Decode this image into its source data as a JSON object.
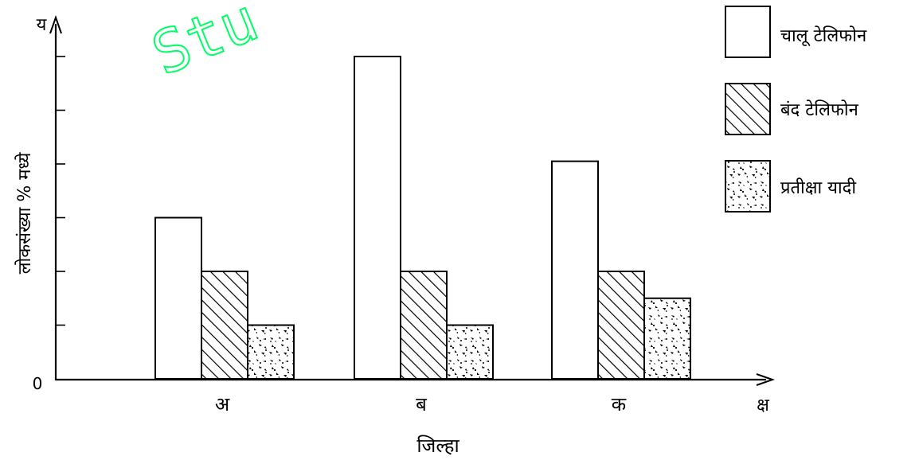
{
  "chart_data": {
    "type": "bar",
    "title": "",
    "categories": [
      "अ",
      "ब",
      "क"
    ],
    "xlabel": "जिल्हा",
    "ylabel": "लोकसंख्या % मध्ये",
    "x_axis_letter": "क्ष",
    "y_axis_letter": "य",
    "y_origin_label": "0",
    "ylim": [
      0,
      12
    ],
    "y_tick_count": 6,
    "legend_position": "top-right",
    "series": [
      {
        "name": "चालू टेलिफोन",
        "pattern": "none",
        "values": [
          6,
          12,
          8.1
        ]
      },
      {
        "name": "बंद टेलिफोन",
        "pattern": "hatch",
        "values": [
          4,
          4,
          4
        ]
      },
      {
        "name": "प्रतीक्षा यादी",
        "pattern": "speckle",
        "values": [
          2,
          2,
          3
        ]
      }
    ],
    "grid": false
  },
  "watermark_text": "Stu",
  "colors": {
    "ink": "#000000",
    "background": "#ffffff",
    "watermark": "#00ff66"
  }
}
